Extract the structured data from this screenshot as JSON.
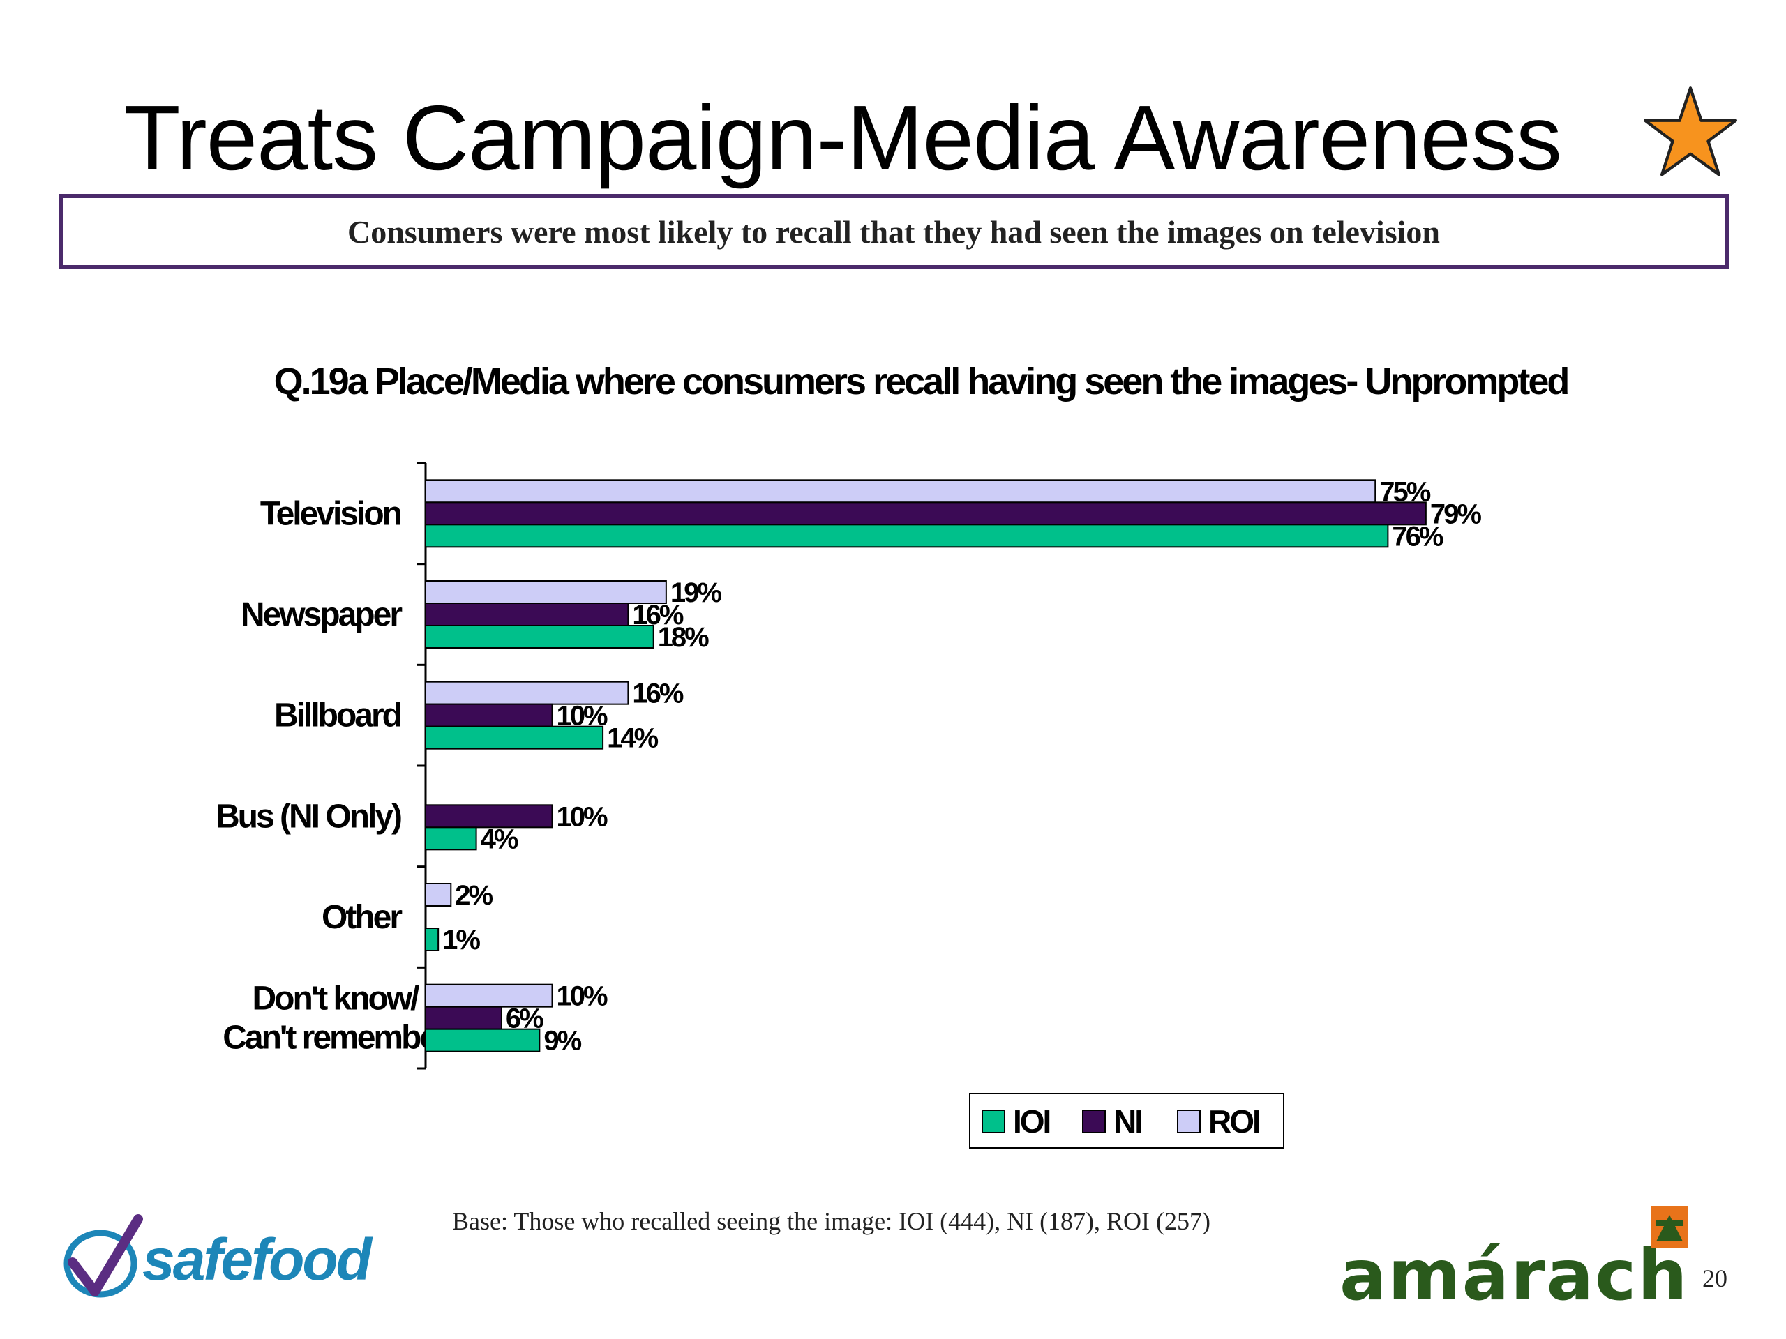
{
  "slide": {
    "title": "Treats Campaign-Media Awareness",
    "subtitle": "Consumers were most likely to recall that they had seen the images on television",
    "base_note": "Base: Those who recalled seeing the image: IOI (444), NI (187), ROI (257)",
    "page_number": "20",
    "logo_left_text": "safefood",
    "logo_right_text": "amárach",
    "star_icon": "star-icon",
    "colors": {
      "border": "#4b2a6b",
      "star_fill": "#f7931e",
      "safefood_blue": "#1d86b8",
      "amarach_green": "#2a5a1c"
    }
  },
  "chart_data": {
    "type": "bar",
    "orientation": "horizontal",
    "title": "Q.19a Place/Media where consumers recall having seen the images- Unprompted",
    "categories": [
      "Television",
      "Newspaper",
      "Billboard",
      "Bus (NI Only)",
      "Other",
      "Don't know/ Can't remember"
    ],
    "series": [
      {
        "name": "IOI",
        "color": "#00c08b",
        "values": [
          76,
          18,
          14,
          4,
          1,
          9
        ],
        "labels": [
          "76%",
          "18%",
          "14%",
          "4%",
          "1%",
          "9%"
        ]
      },
      {
        "name": "NI",
        "color": "#3b0a55",
        "values": [
          79,
          16,
          10,
          10,
          null,
          6
        ],
        "labels": [
          "79%",
          "16%",
          "10%",
          "10%",
          "",
          "6%"
        ]
      },
      {
        "name": "ROI",
        "color": "#cdcdf7",
        "values": [
          75,
          19,
          16,
          null,
          2,
          10
        ],
        "labels": [
          "75%",
          "19%",
          "16%",
          "",
          "2%",
          "10%"
        ]
      }
    ],
    "xlim": [
      0,
      100
    ],
    "grid": false,
    "legend_position": "bottom-right"
  }
}
